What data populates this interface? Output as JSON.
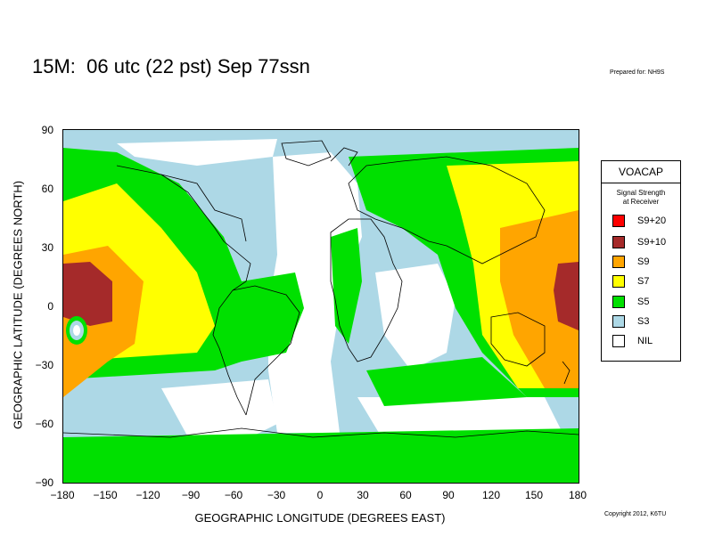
{
  "header": {
    "title": "15M:  06 utc (22 pst) Sep 77ssn",
    "prepared_for": "Prepared for: NH9S"
  },
  "footer": {
    "copyright": "Copyright 2012, K6TU"
  },
  "axes": {
    "y_label": "GEOGRAPHIC LATITUDE (DEGREES NORTH)",
    "x_label": "GEOGRAPHIC LONGITUDE (DEGREES EAST)",
    "y_ticks": [
      "90",
      "60",
      "30",
      "0",
      "−30",
      "−60",
      "−90"
    ],
    "x_ticks": [
      "−180",
      "−150",
      "−120",
      "−90",
      "−60",
      "−30",
      "0",
      "30",
      "60",
      "90",
      "120",
      "150",
      "180"
    ],
    "x_range": [
      -180,
      180
    ],
    "y_range": [
      -90,
      90
    ]
  },
  "legend": {
    "title": "VOACAP",
    "subtitle_line1": "Signal Strength",
    "subtitle_line2": "at Receiver",
    "items": [
      {
        "label": "S9+20",
        "color": "#ff0000"
      },
      {
        "label": "S9+10",
        "color": "#a52a2a"
      },
      {
        "label": "S9",
        "color": "#ffa500"
      },
      {
        "label": "S7",
        "color": "#ffff00"
      },
      {
        "label": "S5",
        "color": "#00e000"
      },
      {
        "label": "S3",
        "color": "#add8e6"
      },
      {
        "label": "NIL",
        "color": "#ffffff"
      }
    ]
  },
  "colors": {
    "s9p10": "#a52a2a",
    "s9": "#ffa500",
    "s7": "#ffff00",
    "s5": "#00e000",
    "s3": "#add8e6",
    "nil": "#ffffff",
    "coast": "#000000"
  }
}
